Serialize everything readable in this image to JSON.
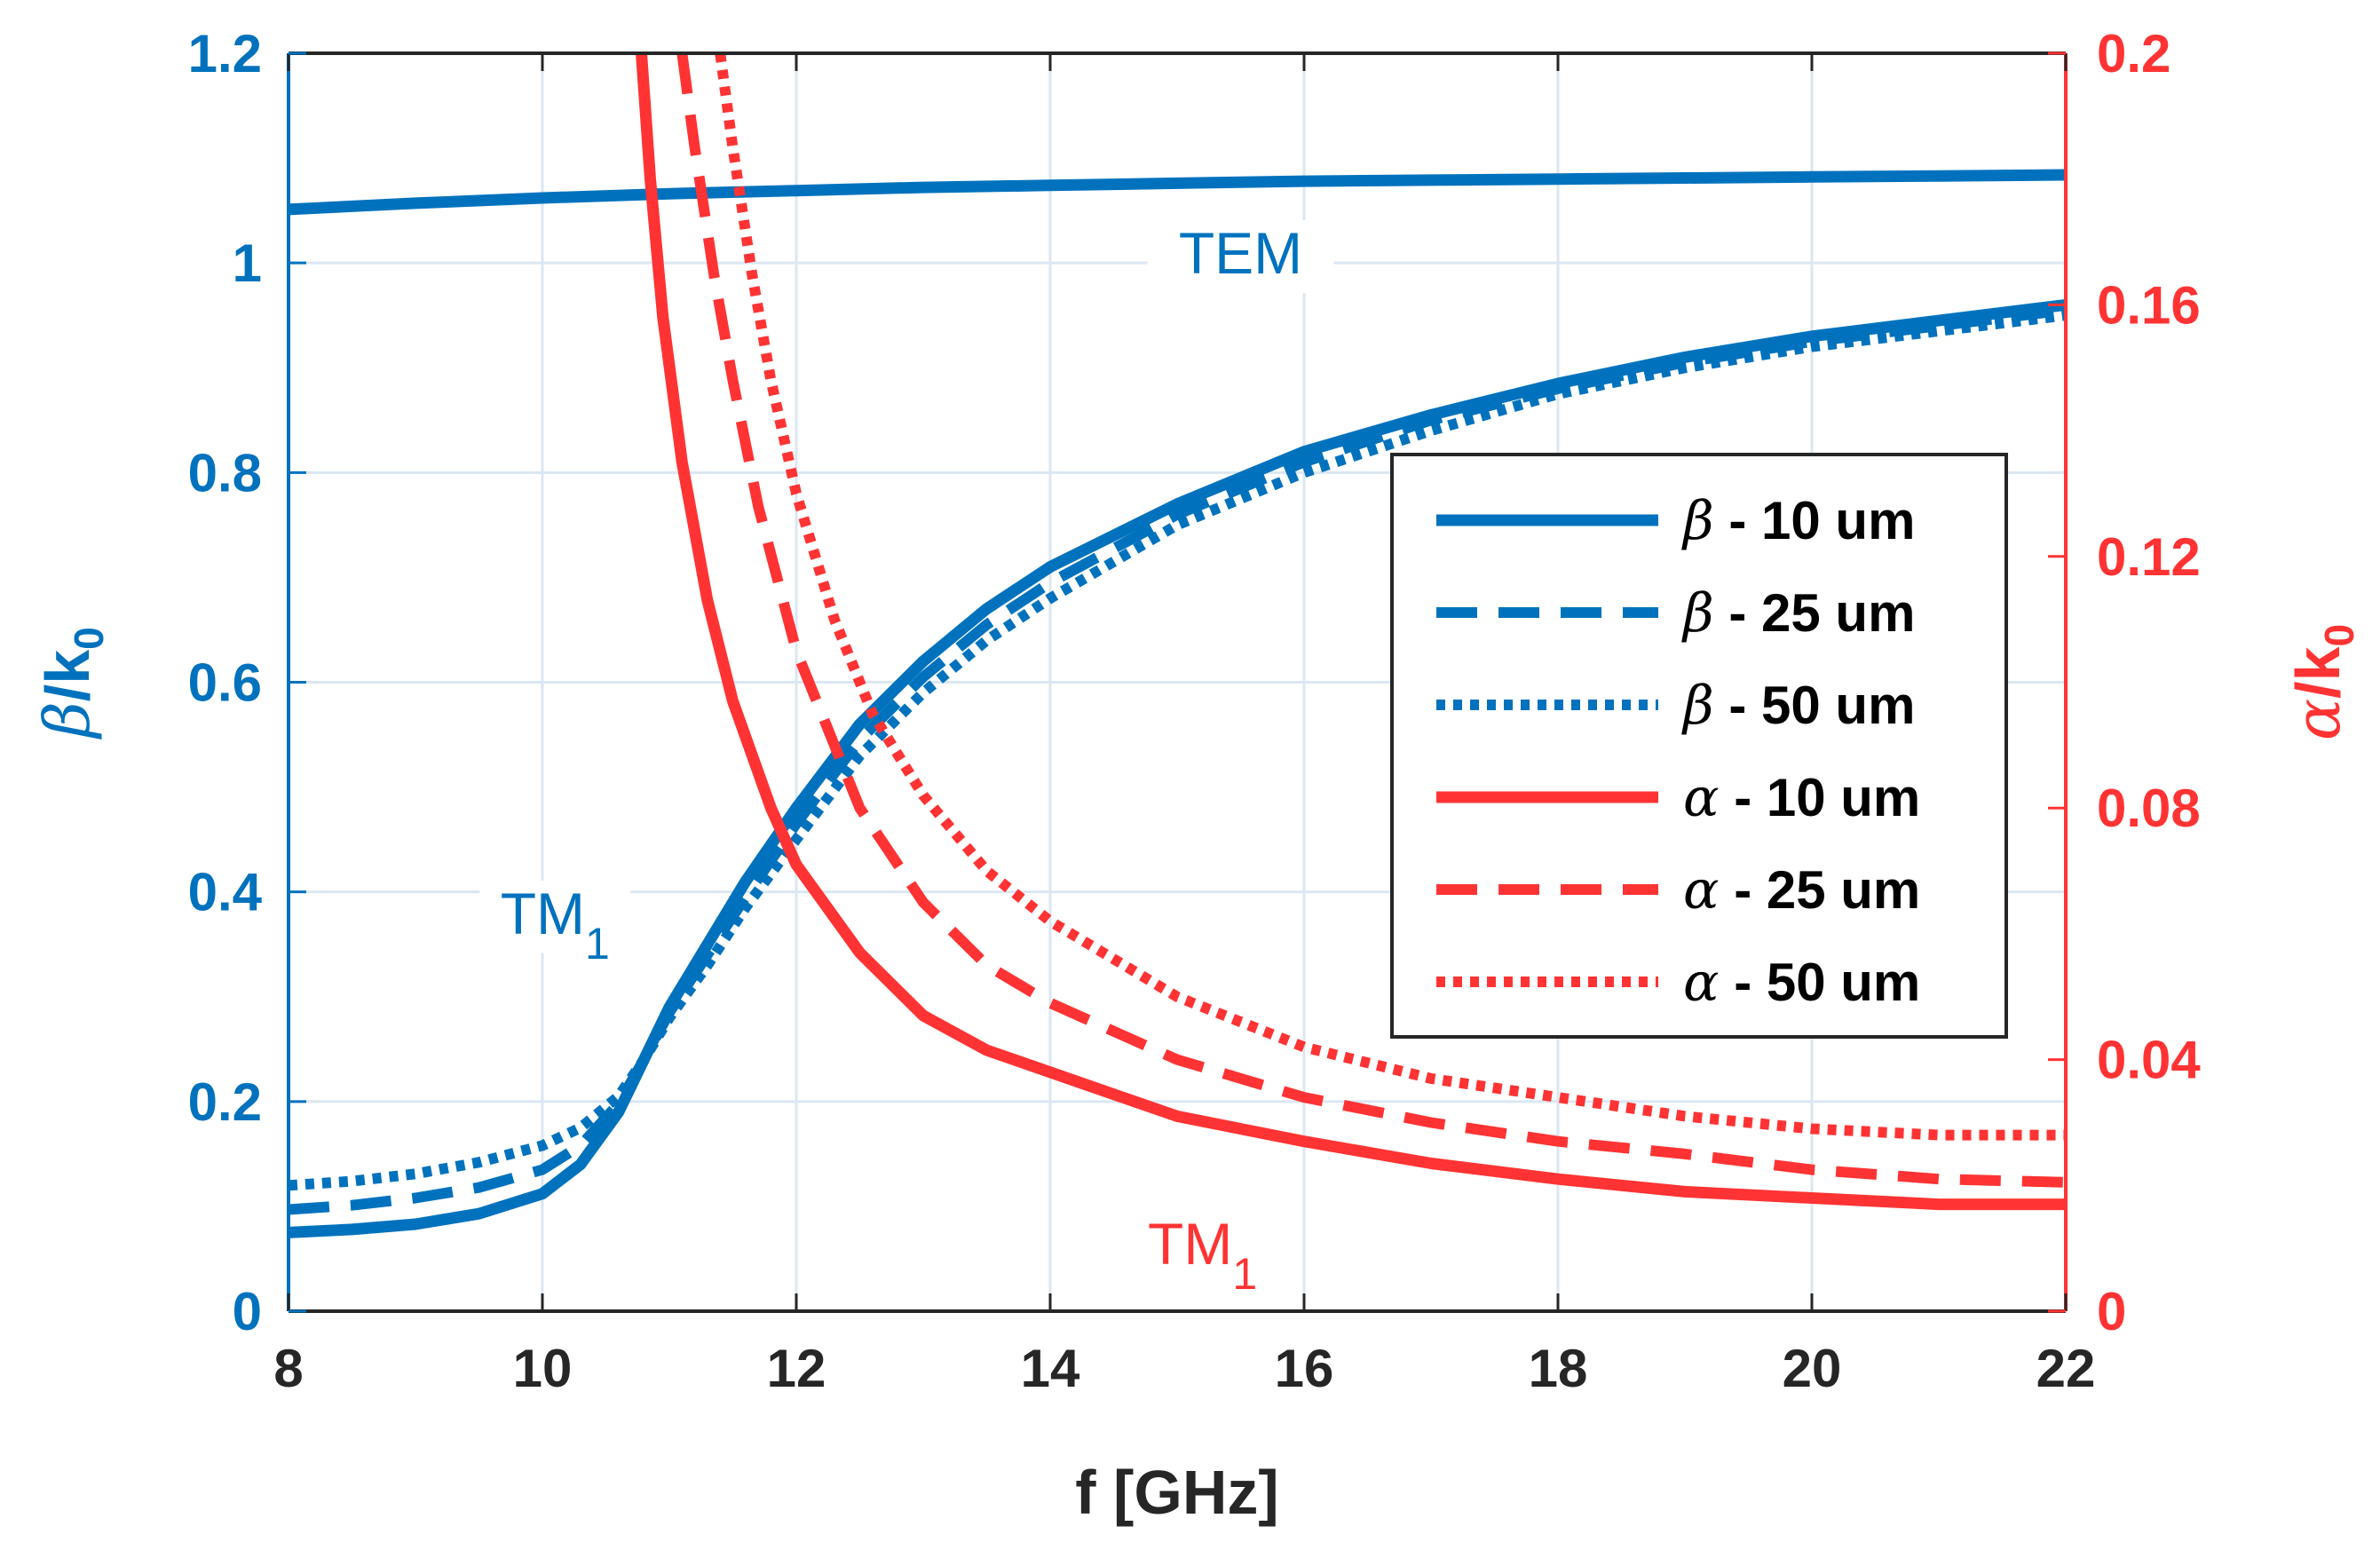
{
  "chart_data": {
    "type": "line",
    "xlabel": "f [GHz]",
    "ylabel_left": {
      "symbol": "β",
      "rest": "/k",
      "sub": "0"
    },
    "ylabel_right": {
      "symbol": "α",
      "rest": "/k",
      "sub": "0"
    },
    "xlim": [
      8,
      22
    ],
    "ylim_left": [
      0,
      1.2
    ],
    "ylim_right": [
      0,
      0.2
    ],
    "xticks": [
      "8",
      "10",
      "12",
      "14",
      "16",
      "18",
      "20",
      "22"
    ],
    "yticks_left": [
      "0",
      "0.2",
      "0.4",
      "0.6",
      "0.8",
      "1",
      "1.2"
    ],
    "yticks_right": [
      "0",
      "0.04",
      "0.08",
      "0.12",
      "0.16",
      "0.2"
    ],
    "grid": true,
    "legend_position": "right-middle",
    "colors": {
      "beta": "#0072bd",
      "alpha": "#ff3333",
      "axis_left": "#0072bd",
      "axis_right": "#ff3333",
      "x_axis": "#262626",
      "grid": "#dbe7f2"
    },
    "annotations": [
      {
        "text": "TEM",
        "sub": "",
        "x": 15.5,
        "y": 0.99,
        "axis": "left",
        "color": "#0072bd"
      },
      {
        "text": "TM",
        "sub": "1",
        "x": 10.1,
        "y": 0.36,
        "axis": "left",
        "color": "#0072bd"
      },
      {
        "text": "TM",
        "sub": "1",
        "x": 15.2,
        "y": 0.0075,
        "axis": "right",
        "color": "#ff3333"
      }
    ],
    "series": [
      {
        "name": "TEM",
        "legend": false,
        "axis": "left",
        "color": "#0072bd",
        "style": "solid",
        "x": [
          8,
          9,
          10,
          11,
          12,
          13,
          14,
          15,
          16,
          17,
          18,
          19,
          20,
          21,
          22
        ],
        "y": [
          1.051,
          1.057,
          1.062,
          1.066,
          1.069,
          1.072,
          1.074,
          1.076,
          1.078,
          1.079,
          1.08,
          1.081,
          1.082,
          1.083,
          1.084
        ]
      },
      {
        "name": "β - 10 um",
        "symbol": "β",
        "label": " - 10 um",
        "legend": true,
        "axis": "left",
        "color": "#0072bd",
        "style": "solid",
        "x": [
          8,
          8.5,
          9,
          9.5,
          10,
          10.3,
          10.6,
          10.8,
          11,
          11.3,
          11.6,
          12,
          12.5,
          13,
          13.5,
          14,
          15,
          16,
          17,
          18,
          19,
          20,
          21,
          22
        ],
        "y": [
          0.075,
          0.078,
          0.083,
          0.093,
          0.112,
          0.14,
          0.19,
          0.24,
          0.29,
          0.35,
          0.41,
          0.48,
          0.56,
          0.62,
          0.67,
          0.71,
          0.77,
          0.82,
          0.855,
          0.885,
          0.91,
          0.93,
          0.945,
          0.96
        ]
      },
      {
        "name": "β - 25 um",
        "symbol": "β",
        "label": " - 25 um",
        "legend": true,
        "axis": "left",
        "color": "#0072bd",
        "style": "dashed",
        "x": [
          8,
          8.5,
          9,
          9.5,
          10,
          10.3,
          10.6,
          10.8,
          11,
          11.3,
          11.6,
          12,
          12.5,
          13,
          13.5,
          14,
          15,
          16,
          17,
          18,
          19,
          20,
          21,
          22
        ],
        "y": [
          0.097,
          0.101,
          0.108,
          0.118,
          0.135,
          0.158,
          0.198,
          0.24,
          0.285,
          0.34,
          0.395,
          0.465,
          0.545,
          0.605,
          0.655,
          0.695,
          0.76,
          0.81,
          0.85,
          0.88,
          0.905,
          0.925,
          0.94,
          0.955
        ]
      },
      {
        "name": "β - 50 um",
        "symbol": "β",
        "label": " - 50 um",
        "legend": true,
        "axis": "left",
        "color": "#0072bd",
        "style": "dotted",
        "x": [
          8,
          8.5,
          9,
          9.5,
          10,
          10.3,
          10.6,
          10.8,
          11,
          11.3,
          11.6,
          12,
          12.5,
          13,
          13.5,
          14,
          15,
          16,
          17,
          18,
          19,
          20,
          21,
          22
        ],
        "y": [
          0.12,
          0.124,
          0.131,
          0.142,
          0.158,
          0.175,
          0.205,
          0.24,
          0.28,
          0.33,
          0.385,
          0.45,
          0.53,
          0.59,
          0.64,
          0.68,
          0.75,
          0.8,
          0.84,
          0.875,
          0.9,
          0.92,
          0.935,
          0.95
        ]
      },
      {
        "name": "α - 10 um",
        "symbol": "α",
        "label": " - 10 um",
        "legend": true,
        "axis": "right",
        "color": "#ff3333",
        "style": "solid",
        "x": [
          10.78,
          10.85,
          10.95,
          11.1,
          11.3,
          11.5,
          11.8,
          12,
          12.5,
          13,
          13.5,
          14,
          15,
          16,
          17,
          18,
          19,
          20,
          21,
          22
        ],
        "y": [
          0.2,
          0.18,
          0.158,
          0.135,
          0.113,
          0.097,
          0.08,
          0.071,
          0.057,
          0.047,
          0.0415,
          0.038,
          0.031,
          0.027,
          0.0235,
          0.021,
          0.019,
          0.018,
          0.017,
          0.017
        ]
      },
      {
        "name": "α - 25 um",
        "symbol": "α",
        "label": " - 25 um",
        "legend": true,
        "axis": "right",
        "color": "#ff3333",
        "style": "dashed",
        "x": [
          11.1,
          11.2,
          11.35,
          11.5,
          11.7,
          12,
          12.5,
          13,
          13.5,
          14,
          15,
          16,
          17,
          18,
          19,
          20,
          21,
          22
        ],
        "y": [
          0.2,
          0.185,
          0.165,
          0.148,
          0.128,
          0.105,
          0.08,
          0.065,
          0.055,
          0.049,
          0.04,
          0.034,
          0.03,
          0.027,
          0.025,
          0.0225,
          0.021,
          0.0205
        ]
      },
      {
        "name": "α - 50 um",
        "symbol": "α",
        "label": " - 50 um",
        "legend": true,
        "axis": "right",
        "color": "#ff3333",
        "style": "dotted",
        "x": [
          11.4,
          11.5,
          11.65,
          11.8,
          12,
          12.3,
          12.6,
          13,
          13.5,
          14,
          15,
          16,
          17,
          18,
          19,
          20,
          21,
          22
        ],
        "y": [
          0.2,
          0.185,
          0.165,
          0.148,
          0.13,
          0.11,
          0.095,
          0.082,
          0.07,
          0.062,
          0.05,
          0.042,
          0.037,
          0.034,
          0.031,
          0.029,
          0.028,
          0.028
        ]
      }
    ]
  }
}
